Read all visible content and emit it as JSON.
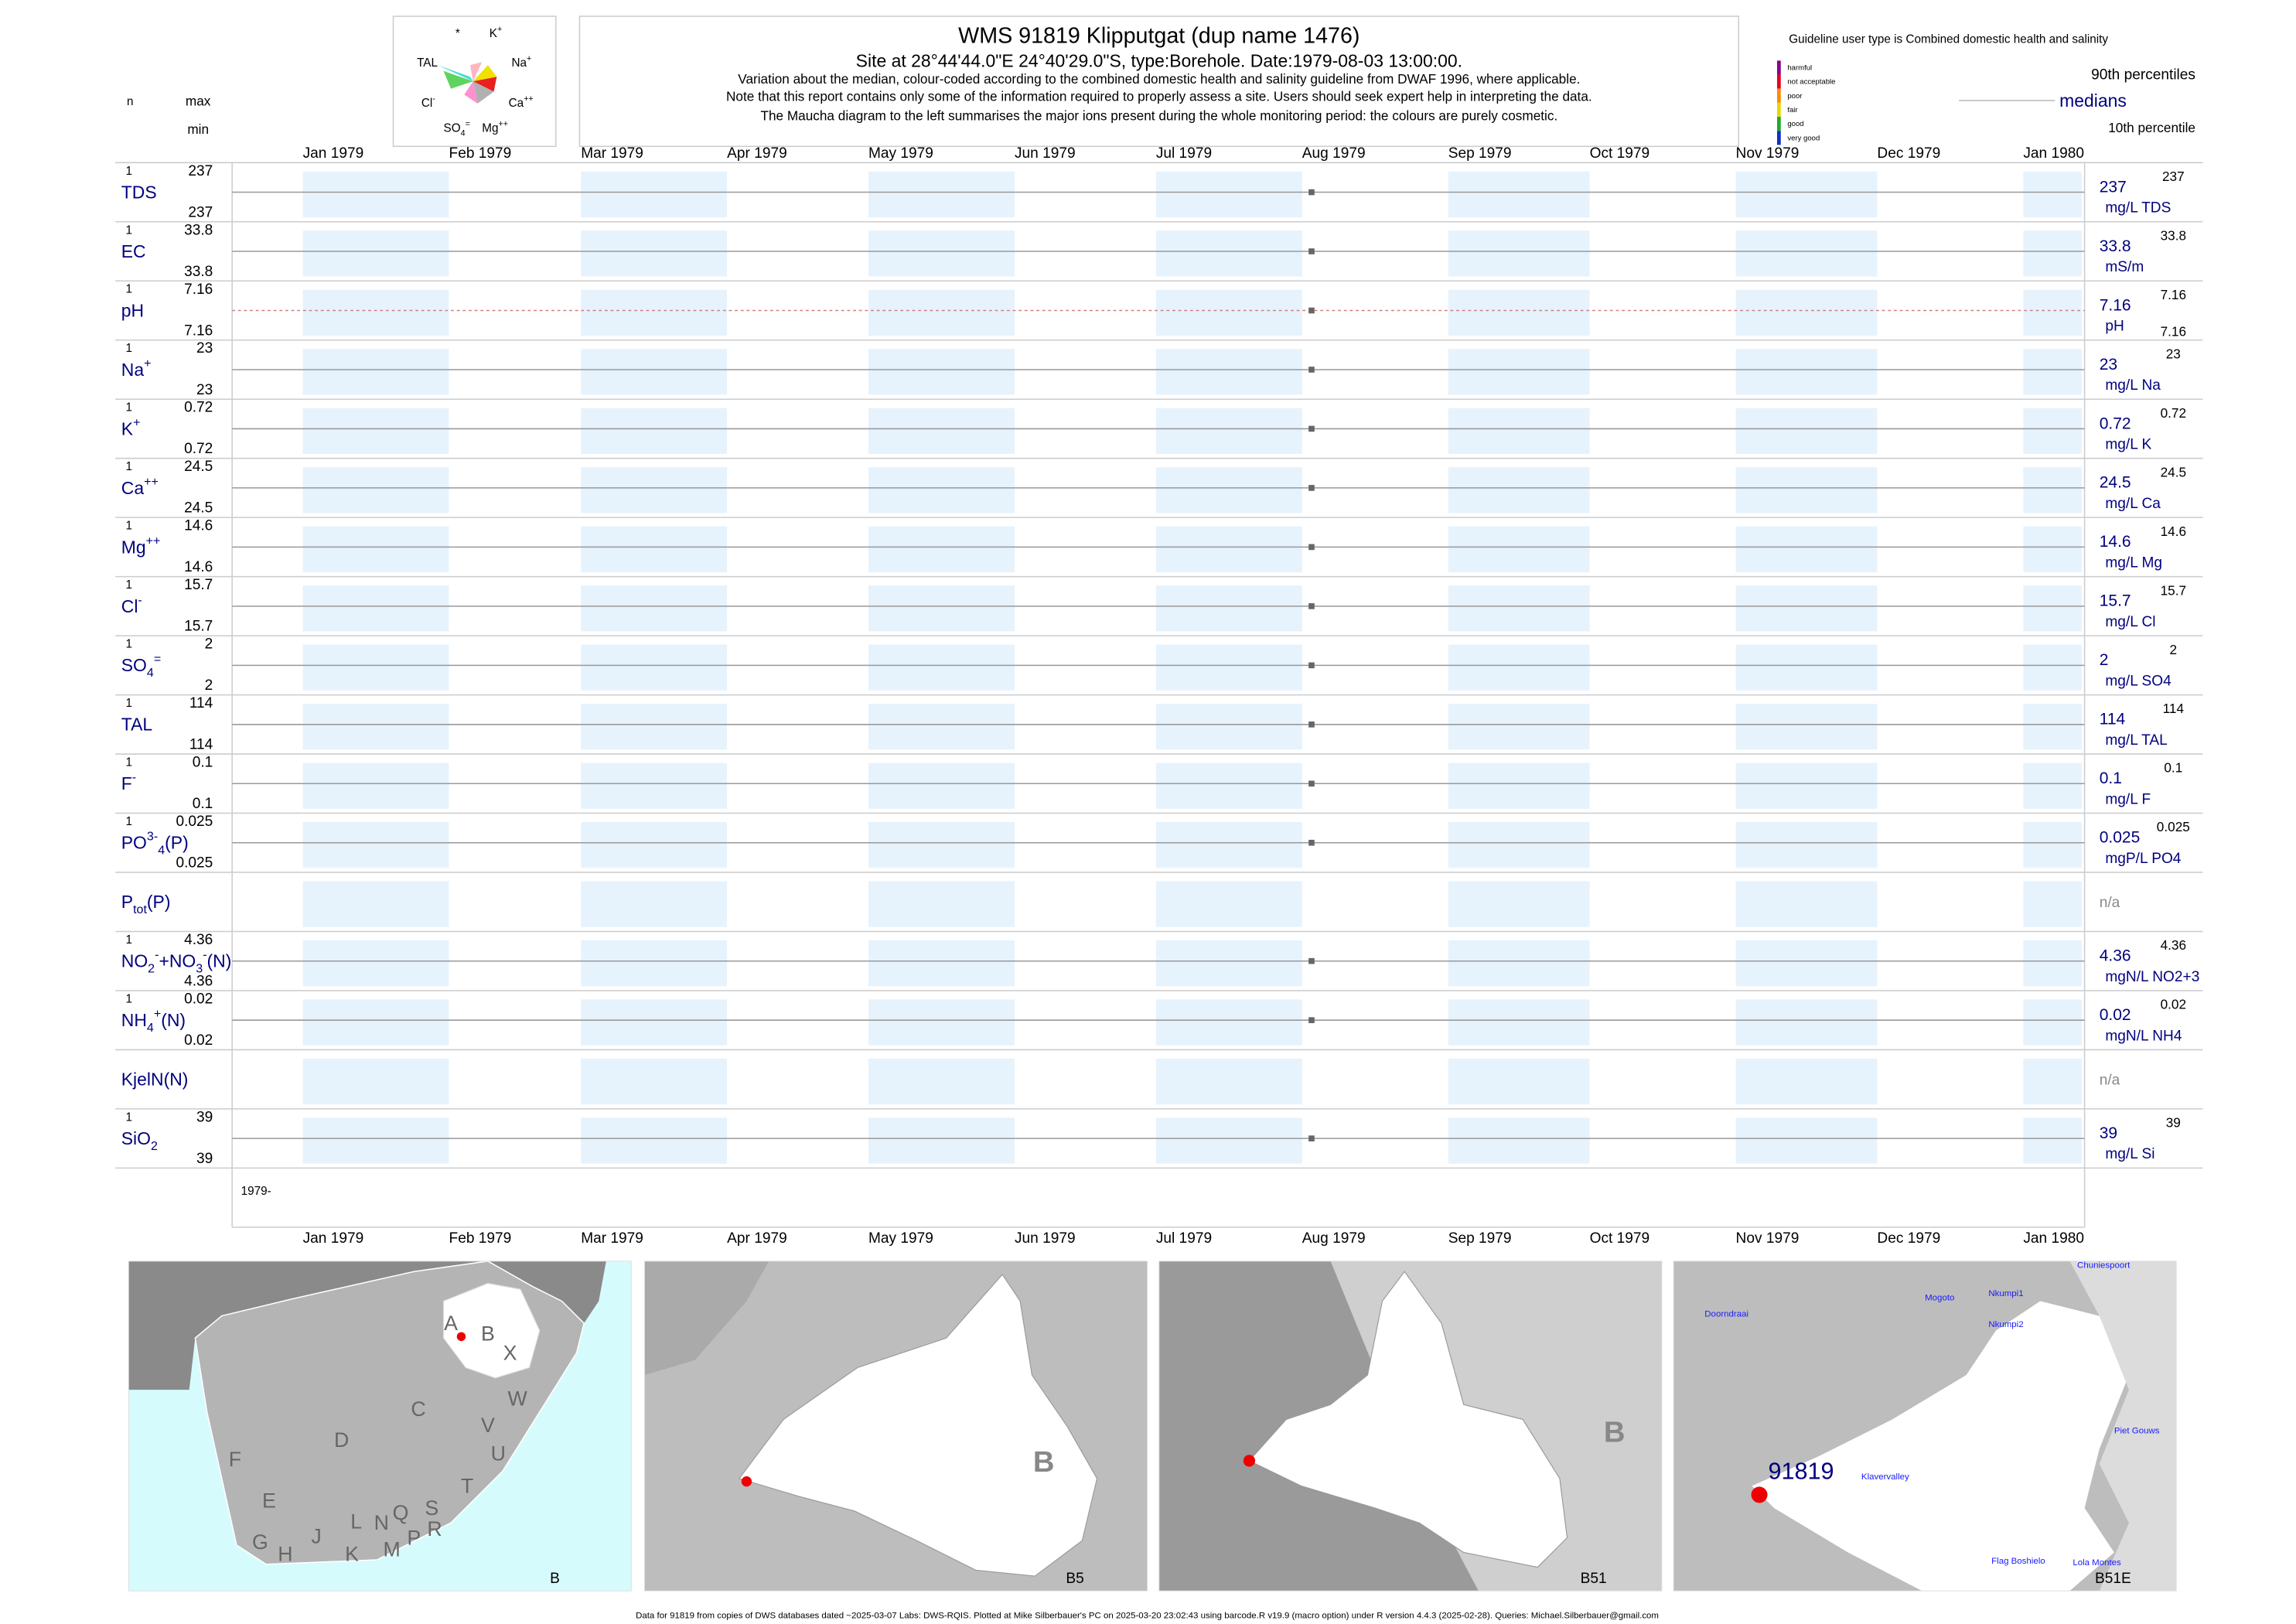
{
  "chart_data": {
    "type": "strip",
    "title": "WMS 91819  Klipputgat (dup name 1476)",
    "subtitle": "Site at 28°44'44.0\"E 24°40'29.0\"S, type:Borehole. Date:1979-08-03 13:00:00.",
    "notes": [
      "Variation about the median,  colour-coded according to the combined domestic health and salinity guideline from DWAF 1996, where applicable.",
      "Note that this report contains only some of the information required to properly assess a site. Users should seek expert help in interpreting the data.",
      "The Maucha diagram to the left summarises the major ions present during the whole monitoring period: the colours are purely cosmetic."
    ],
    "column_heads": {
      "n": "n",
      "max": "max",
      "min": "min"
    },
    "xlim": [
      "1978-12-17",
      "1980-01-14"
    ],
    "xticks": [
      {
        "value": "1979-01-01",
        "label": "Jan 1979"
      },
      {
        "value": "1979-02-01",
        "label": "Feb 1979"
      },
      {
        "value": "1979-03-01",
        "label": "Mar 1979"
      },
      {
        "value": "1979-04-01",
        "label": "Apr 1979"
      },
      {
        "value": "1979-05-01",
        "label": "May 1979"
      },
      {
        "value": "1979-06-01",
        "label": "Jun 1979"
      },
      {
        "value": "1979-07-01",
        "label": "Jul 1979"
      },
      {
        "value": "1979-08-01",
        "label": "Aug 1979"
      },
      {
        "value": "1979-09-01",
        "label": "Sep 1979"
      },
      {
        "value": "1979-10-01",
        "label": "Oct 1979"
      },
      {
        "value": "1979-11-01",
        "label": "Nov 1979"
      },
      {
        "value": "1979-12-01",
        "label": "Dec 1979"
      },
      {
        "value": "1980-01-01",
        "label": "Jan 1980"
      }
    ],
    "x": [
      "1979-08-03"
    ],
    "year_label": "1979-",
    "shade_color": "#e6f3fd",
    "point_color": "#666666",
    "rows": [
      {
        "label": [
          {
            "text": "TDS",
            "pos": "base"
          }
        ],
        "n": 1,
        "max": 237,
        "min": 237,
        "median": 237,
        "unit": "mg/L TDS",
        "p90": 237,
        "values": [
          237
        ]
      },
      {
        "label": [
          {
            "text": "EC",
            "pos": "base"
          }
        ],
        "n": 1,
        "max": 33.8,
        "min": 33.8,
        "median": 33.8,
        "unit": "mS/m",
        "p90": 33.8,
        "values": [
          33.8
        ]
      },
      {
        "label": [
          {
            "text": "pH",
            "pos": "base"
          }
        ],
        "n": 1,
        "max": 7.16,
        "min": 7.16,
        "median": 7.16,
        "unit": "pH",
        "p90": 7.16,
        "p10": 7.16,
        "values": [
          7.16
        ],
        "dashed": true
      },
      {
        "label": [
          {
            "text": "Na",
            "pos": "base"
          },
          {
            "text": "+",
            "pos": "sup"
          }
        ],
        "n": 1,
        "max": 23,
        "min": 23,
        "median": 23,
        "unit": "mg/L Na",
        "p90": 23,
        "values": [
          23
        ]
      },
      {
        "label": [
          {
            "text": "K",
            "pos": "base"
          },
          {
            "text": "+",
            "pos": "sup"
          }
        ],
        "n": 1,
        "max": 0.72,
        "min": 0.72,
        "median": 0.72,
        "unit": "mg/L K",
        "p90": 0.72,
        "values": [
          0.72
        ]
      },
      {
        "label": [
          {
            "text": "Ca",
            "pos": "base"
          },
          {
            "text": "++",
            "pos": "sup"
          }
        ],
        "n": 1,
        "max": 24.5,
        "min": 24.5,
        "median": 24.5,
        "unit": "mg/L Ca",
        "p90": 24.5,
        "values": [
          24.5
        ]
      },
      {
        "label": [
          {
            "text": "Mg",
            "pos": "base"
          },
          {
            "text": "++",
            "pos": "sup"
          }
        ],
        "n": 1,
        "max": 14.6,
        "min": 14.6,
        "median": 14.6,
        "unit": "mg/L Mg",
        "p90": 14.6,
        "values": [
          14.6
        ]
      },
      {
        "label": [
          {
            "text": "Cl",
            "pos": "base"
          },
          {
            "text": "-",
            "pos": "sup"
          }
        ],
        "n": 1,
        "max": 15.7,
        "min": 15.7,
        "median": 15.7,
        "unit": "mg/L Cl",
        "p90": 15.7,
        "values": [
          15.7
        ]
      },
      {
        "label": [
          {
            "text": "SO",
            "pos": "base"
          },
          {
            "text": "4",
            "pos": "sub"
          },
          {
            "text": "=",
            "pos": "sup"
          }
        ],
        "n": 1,
        "max": 2,
        "min": 2,
        "median": 2,
        "unit": "mg/L SO4",
        "p90": 2,
        "values": [
          2
        ]
      },
      {
        "label": [
          {
            "text": "TAL",
            "pos": "base"
          }
        ],
        "n": 1,
        "max": 114,
        "min": 114,
        "median": 114,
        "unit": "mg/L TAL",
        "p90": 114,
        "values": [
          114
        ]
      },
      {
        "label": [
          {
            "text": "F",
            "pos": "base"
          },
          {
            "text": "-",
            "pos": "sup"
          }
        ],
        "n": 1,
        "max": 0.1,
        "min": 0.1,
        "median": 0.1,
        "unit": "mg/L F",
        "p90": 0.1,
        "values": [
          0.1
        ]
      },
      {
        "label": [
          {
            "text": "PO",
            "pos": "base"
          },
          {
            "text": "3-",
            "pos": "sup"
          },
          {
            "text": "4",
            "pos": "sub"
          },
          {
            "text": "(P)",
            "pos": "base"
          }
        ],
        "n": 1,
        "max": 0.025,
        "min": 0.025,
        "median": 0.025,
        "unit": "mgP/L PO4",
        "p90": 0.025,
        "values": [
          0.025
        ]
      },
      {
        "label": [
          {
            "text": "P",
            "pos": "base"
          },
          {
            "text": "tot",
            "pos": "sub"
          },
          {
            "text": "(P)",
            "pos": "base"
          }
        ],
        "missing": "n/a"
      },
      {
        "label": [
          {
            "text": "NO",
            "pos": "base"
          },
          {
            "text": "2",
            "pos": "sub"
          },
          {
            "text": "-",
            "pos": "sup"
          },
          {
            "text": "+NO",
            "pos": "base"
          },
          {
            "text": "3",
            "pos": "sub"
          },
          {
            "text": "-",
            "pos": "sup"
          },
          {
            "text": "(N)",
            "pos": "base"
          }
        ],
        "n": 1,
        "max": 4.36,
        "min": 4.36,
        "median": 4.36,
        "unit": "mgN/L NO2+3",
        "p90": 4.36,
        "values": [
          4.36
        ]
      },
      {
        "label": [
          {
            "text": "NH",
            "pos": "base"
          },
          {
            "text": "4",
            "pos": "sub"
          },
          {
            "text": "+",
            "pos": "sup"
          },
          {
            "text": "(N)",
            "pos": "base"
          }
        ],
        "n": 1,
        "max": 0.02,
        "min": 0.02,
        "median": 0.02,
        "unit": "mgN/L NH4",
        "p90": 0.02,
        "values": [
          0.02
        ]
      },
      {
        "label": [
          {
            "text": "KjelN(N)",
            "pos": "base"
          }
        ],
        "missing": "n/a"
      },
      {
        "label": [
          {
            "text": "SiO",
            "pos": "base"
          },
          {
            "text": "2",
            "pos": "sub"
          }
        ],
        "n": 1,
        "max": 39,
        "min": 39,
        "median": 39,
        "unit": "mg/L Si",
        "p90": 39,
        "values": [
          39
        ]
      }
    ]
  },
  "maucha": {
    "labels": [
      [
        {
          "text": "*",
          "pos": "base"
        }
      ],
      [
        {
          "text": "K",
          "pos": "base"
        },
        {
          "text": "+",
          "pos": "sup"
        }
      ],
      [
        {
          "text": "TAL",
          "pos": "base"
        }
      ],
      [
        {
          "text": "Na",
          "pos": "base"
        },
        {
          "text": "+",
          "pos": "sup"
        }
      ],
      [
        {
          "text": "Cl",
          "pos": "base"
        },
        {
          "text": "-",
          "pos": "sup"
        }
      ],
      [
        {
          "text": "Ca",
          "pos": "base"
        },
        {
          "text": "++",
          "pos": "sup"
        }
      ],
      [
        {
          "text": "SO",
          "pos": "base"
        },
        {
          "text": "4",
          "pos": "sub"
        },
        {
          "text": "=",
          "pos": "sup"
        }
      ],
      [
        {
          "text": "Mg",
          "pos": "base"
        },
        {
          "text": "++",
          "pos": "sup"
        }
      ]
    ]
  },
  "guideline": {
    "title": "Guideline user type is Combined domestic health and salinity",
    "classes": [
      {
        "name": "harmful",
        "color": "#8b008b"
      },
      {
        "name": "not acceptable",
        "color": "#e8001c"
      },
      {
        "name": "poor",
        "color": "#ff8c00"
      },
      {
        "name": "fair",
        "color": "#e6d800"
      },
      {
        "name": "good",
        "color": "#1faa2a"
      },
      {
        "name": "very good",
        "color": "#1030c8"
      }
    ],
    "p90": "90th percentiles",
    "median": "medians",
    "p10": "10th percentile"
  },
  "maps": [
    {
      "label": "B",
      "regions": [
        "A",
        "B",
        "X",
        "C",
        "W",
        "D",
        "V",
        "U",
        "F",
        "E",
        "T",
        "G",
        "H",
        "J",
        "K",
        "L",
        "N",
        "Q",
        "M",
        "P",
        "R",
        "S"
      ]
    },
    {
      "label": "B5",
      "regions": [
        "B"
      ]
    },
    {
      "label": "B51",
      "regions": [
        "B"
      ]
    },
    {
      "label": "B51E",
      "site": "91819",
      "places": [
        "Chuniespoort",
        "Mogoto",
        "Nkumpi1",
        "Nkumpi2",
        "Doorndraai",
        "Piet Gouws",
        "Klavervalley",
        "Flag Boshielo",
        "Lola Montes"
      ]
    }
  ],
  "footer": "Data for 91819 from copies of DWS databases dated ~2025-03-07 Labs: DWS-RQIS. Plotted at Mike Silberbauer's PC on 2025-03-20 23:02:43 using barcode.R v19.9 (macro option) under R version 4.4.3 (2025-02-28). Queries: Michael.Silberbauer@gmail.com"
}
